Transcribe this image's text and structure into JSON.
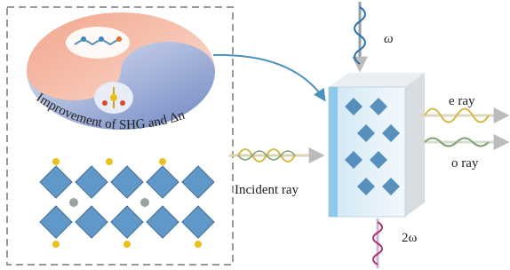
{
  "panel": {
    "caption": "Improvement of SHG and Δn"
  },
  "labels": {
    "omega": "ω",
    "e_ray": "e ray",
    "o_ray": "o ray",
    "incident": "Incident ray",
    "two_omega": "2ω"
  }
}
